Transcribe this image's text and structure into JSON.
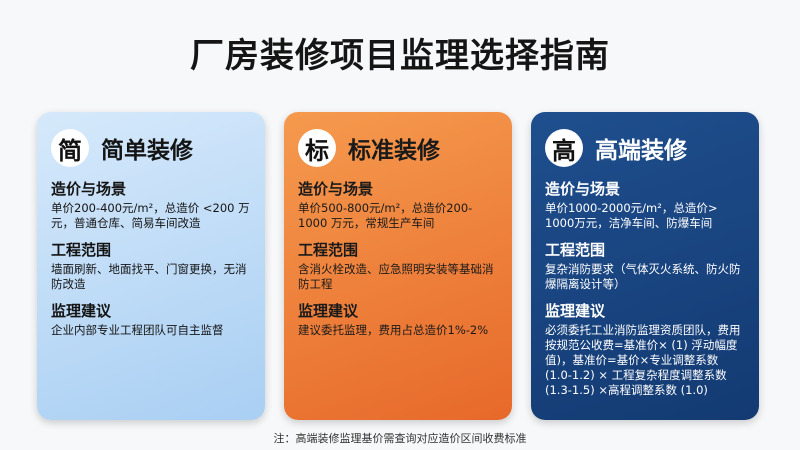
{
  "title": "厂房装修项目监理选择指南",
  "cards": [
    {
      "badge": "简",
      "title": "简单装修",
      "sections": [
        {
          "heading": "造价与场景",
          "text": "单价200-400元/m²，总造价 <200 万元，普通仓库、简易车间改造"
        },
        {
          "heading": "工程范围",
          "text": "墙面刷新、地面找平、门窗更换，无消防改造"
        },
        {
          "heading": "监理建议",
          "text": "企业内部专业工程团队可自主监督"
        }
      ]
    },
    {
      "badge": "标",
      "title": "标准装修",
      "sections": [
        {
          "heading": "造价与场景",
          "text": "单价500-800元/m²，总造价200-1000 万元，常规生产车间"
        },
        {
          "heading": "工程范围",
          "text": "含消火栓改造、应急照明安装等基础消防工程"
        },
        {
          "heading": "监理建议",
          "text": "建议委托监理，费用占总造价1%-2%"
        }
      ]
    },
    {
      "badge": "高",
      "title": "高端装修",
      "sections": [
        {
          "heading": "造价与场景",
          "text": "单价1000-2000元/m²，总造价> 1000万元，洁净车间、防爆车间"
        },
        {
          "heading": "工程范围",
          "text": "复杂消防要求（气体灭火系统、防火防爆隔离设计等）"
        },
        {
          "heading": "监理建议",
          "text": "必须委托工业消防监理资质团队，费用按规范公收费=基准价× (1) 浮动幅度值)，基准价=基价×专业调整系数 (1.0-1.2) × 工程复杂程度调整系数 (1.3-1.5) ×高程调整系数 (1.0)"
        }
      ]
    }
  ],
  "footnote": "注：高端装修监理基价需查询对应造价区间收费标准"
}
